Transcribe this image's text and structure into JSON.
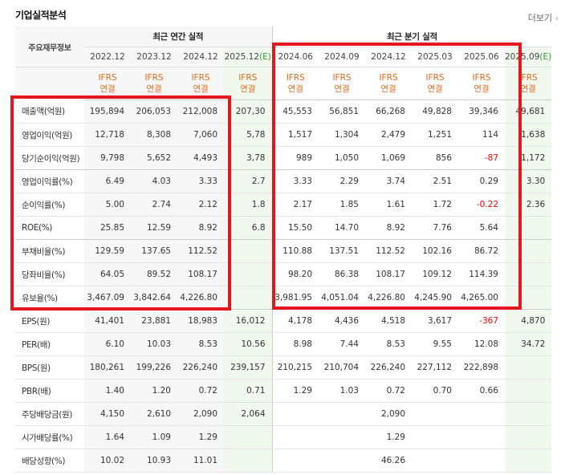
{
  "title": "기업실적분석",
  "more_label": "더보기",
  "more_icon": "chevron-right-icon",
  "header_label": "주요재무정보",
  "annual_group": "최근 연간 실적",
  "quarter_group": "최근 분기 실적",
  "periods": [
    "2022.12",
    "2023.12",
    "2024.12",
    "2025.12(E)",
    "2024.06",
    "2024.09",
    "2024.12",
    "2025.03",
    "2025.06",
    "2025.09(E)"
  ],
  "period_estimate_suffix": "(E)",
  "standard_line1": "IFRS",
  "standard_line2": "연결",
  "rows": [
    {
      "label": "매출액(억원)",
      "values": [
        "195,894",
        "206,053",
        "212,008",
        "207,30",
        "45,553",
        "56,851",
        "66,268",
        "49,828",
        "39,346",
        "49,681"
      ]
    },
    {
      "label": "영업이익(억원)",
      "values": [
        "12,718",
        "8,308",
        "7,060",
        "5,78",
        "1,517",
        "1,304",
        "2,479",
        "1,251",
        "114",
        "1,638"
      ]
    },
    {
      "label": "당기순이익(억원)",
      "values": [
        "9,798",
        "5,652",
        "4,493",
        "3,78",
        "989",
        "1,050",
        "1,069",
        "856",
        "-87",
        "1,172"
      ]
    },
    {
      "label": "영업이익률(%)",
      "values": [
        "6.49",
        "4.03",
        "3.33",
        "2.7",
        "3.33",
        "2.29",
        "3.74",
        "2.51",
        "0.29",
        "3.30"
      ]
    },
    {
      "label": "순이익률(%)",
      "values": [
        "5.00",
        "2.74",
        "2.12",
        "1.8",
        "2.17",
        "1.85",
        "1.61",
        "1.72",
        "-0.22",
        "2.36"
      ]
    },
    {
      "label": "ROE(%)",
      "values": [
        "25.85",
        "12.59",
        "8.92",
        "6.8",
        "15.50",
        "14.70",
        "8.92",
        "7.76",
        "5.64",
        ""
      ]
    },
    {
      "label": "부채비율(%)",
      "values": [
        "129.59",
        "137.65",
        "112.52",
        "",
        "110.88",
        "137.51",
        "112.52",
        "102.16",
        "86.72",
        ""
      ]
    },
    {
      "label": "당좌비율(%)",
      "values": [
        "64.05",
        "89.52",
        "108.17",
        "",
        "98.20",
        "86.38",
        "108.17",
        "109.12",
        "114.39",
        ""
      ]
    },
    {
      "label": "유보율(%)",
      "values": [
        "3,467.09",
        "3,842.64",
        "4,226.80",
        "",
        "3,981.95",
        "4,051.04",
        "4,226.80",
        "4,245.90",
        "4,265.00",
        ""
      ]
    },
    {
      "label": "EPS(원)",
      "values": [
        "41,401",
        "23,881",
        "18,983",
        "16,012",
        "4,178",
        "4,436",
        "4,518",
        "3,617",
        "-367",
        "4,870"
      ]
    },
    {
      "label": "PER(배)",
      "values": [
        "6.10",
        "10.03",
        "8.53",
        "10.56",
        "8.98",
        "7.44",
        "8.53",
        "9.55",
        "12.08",
        "34.72"
      ]
    },
    {
      "label": "BPS(원)",
      "values": [
        "180,261",
        "199,226",
        "226,240",
        "239,157",
        "210,215",
        "210,704",
        "226,240",
        "227,112",
        "222,898",
        ""
      ]
    },
    {
      "label": "PBR(배)",
      "values": [
        "1.40",
        "1.20",
        "0.72",
        "0.71",
        "1.29",
        "1.03",
        "0.72",
        "0.70",
        "0.66",
        ""
      ]
    },
    {
      "label": "주당배당금(원)",
      "values": [
        "4,150",
        "2,610",
        "2,090",
        "2,064",
        "",
        "",
        "2,090",
        "",
        "",
        ""
      ]
    },
    {
      "label": "시가배당률(%)",
      "values": [
        "1.64",
        "1.09",
        "1.29",
        "",
        "",
        "",
        "1.29",
        "",
        "",
        ""
      ]
    },
    {
      "label": "배당성향(%)",
      "values": [
        "10.02",
        "10.93",
        "11.01",
        "",
        "",
        "",
        "46.26",
        "",
        "",
        ""
      ]
    }
  ],
  "colors": {
    "highlight": "#e4171e",
    "negative": "#e00000",
    "ifrs": "#e06a1c",
    "estimate": "#2a9d3a"
  }
}
